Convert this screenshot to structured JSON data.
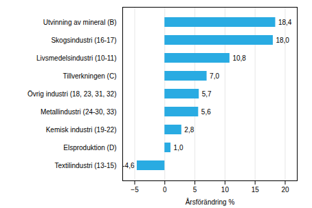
{
  "chart_data": {
    "type": "bar",
    "orientation": "horizontal",
    "categories": [
      "Textilindustri (13-15)",
      "Elsproduktion (D)",
      "Kemisk industri (19-22)",
      "Metallindustri (24-30, 33)",
      "Övrig industri (18, 23, 31, 32)",
      "Tillverkningen (C)",
      "Livsmedelsindustri (10-11)",
      "Skogsindustri (16-17)",
      "Utvinning av mineral (B)"
    ],
    "values": [
      -4.6,
      1.0,
      2.8,
      5.6,
      5.7,
      7.0,
      10.8,
      18.0,
      18.4
    ],
    "value_labels": [
      "-4,6",
      "1,0",
      "2,8",
      "5,6",
      "5,7",
      "7,0",
      "10,8",
      "18,0",
      "18,4"
    ],
    "data_labels": true,
    "color": "#29abe2",
    "xlabel": "Årsförändring %",
    "xlim": [
      -7,
      22
    ],
    "xticks": [
      -5,
      0,
      5,
      10,
      15,
      20
    ],
    "grid": true
  }
}
